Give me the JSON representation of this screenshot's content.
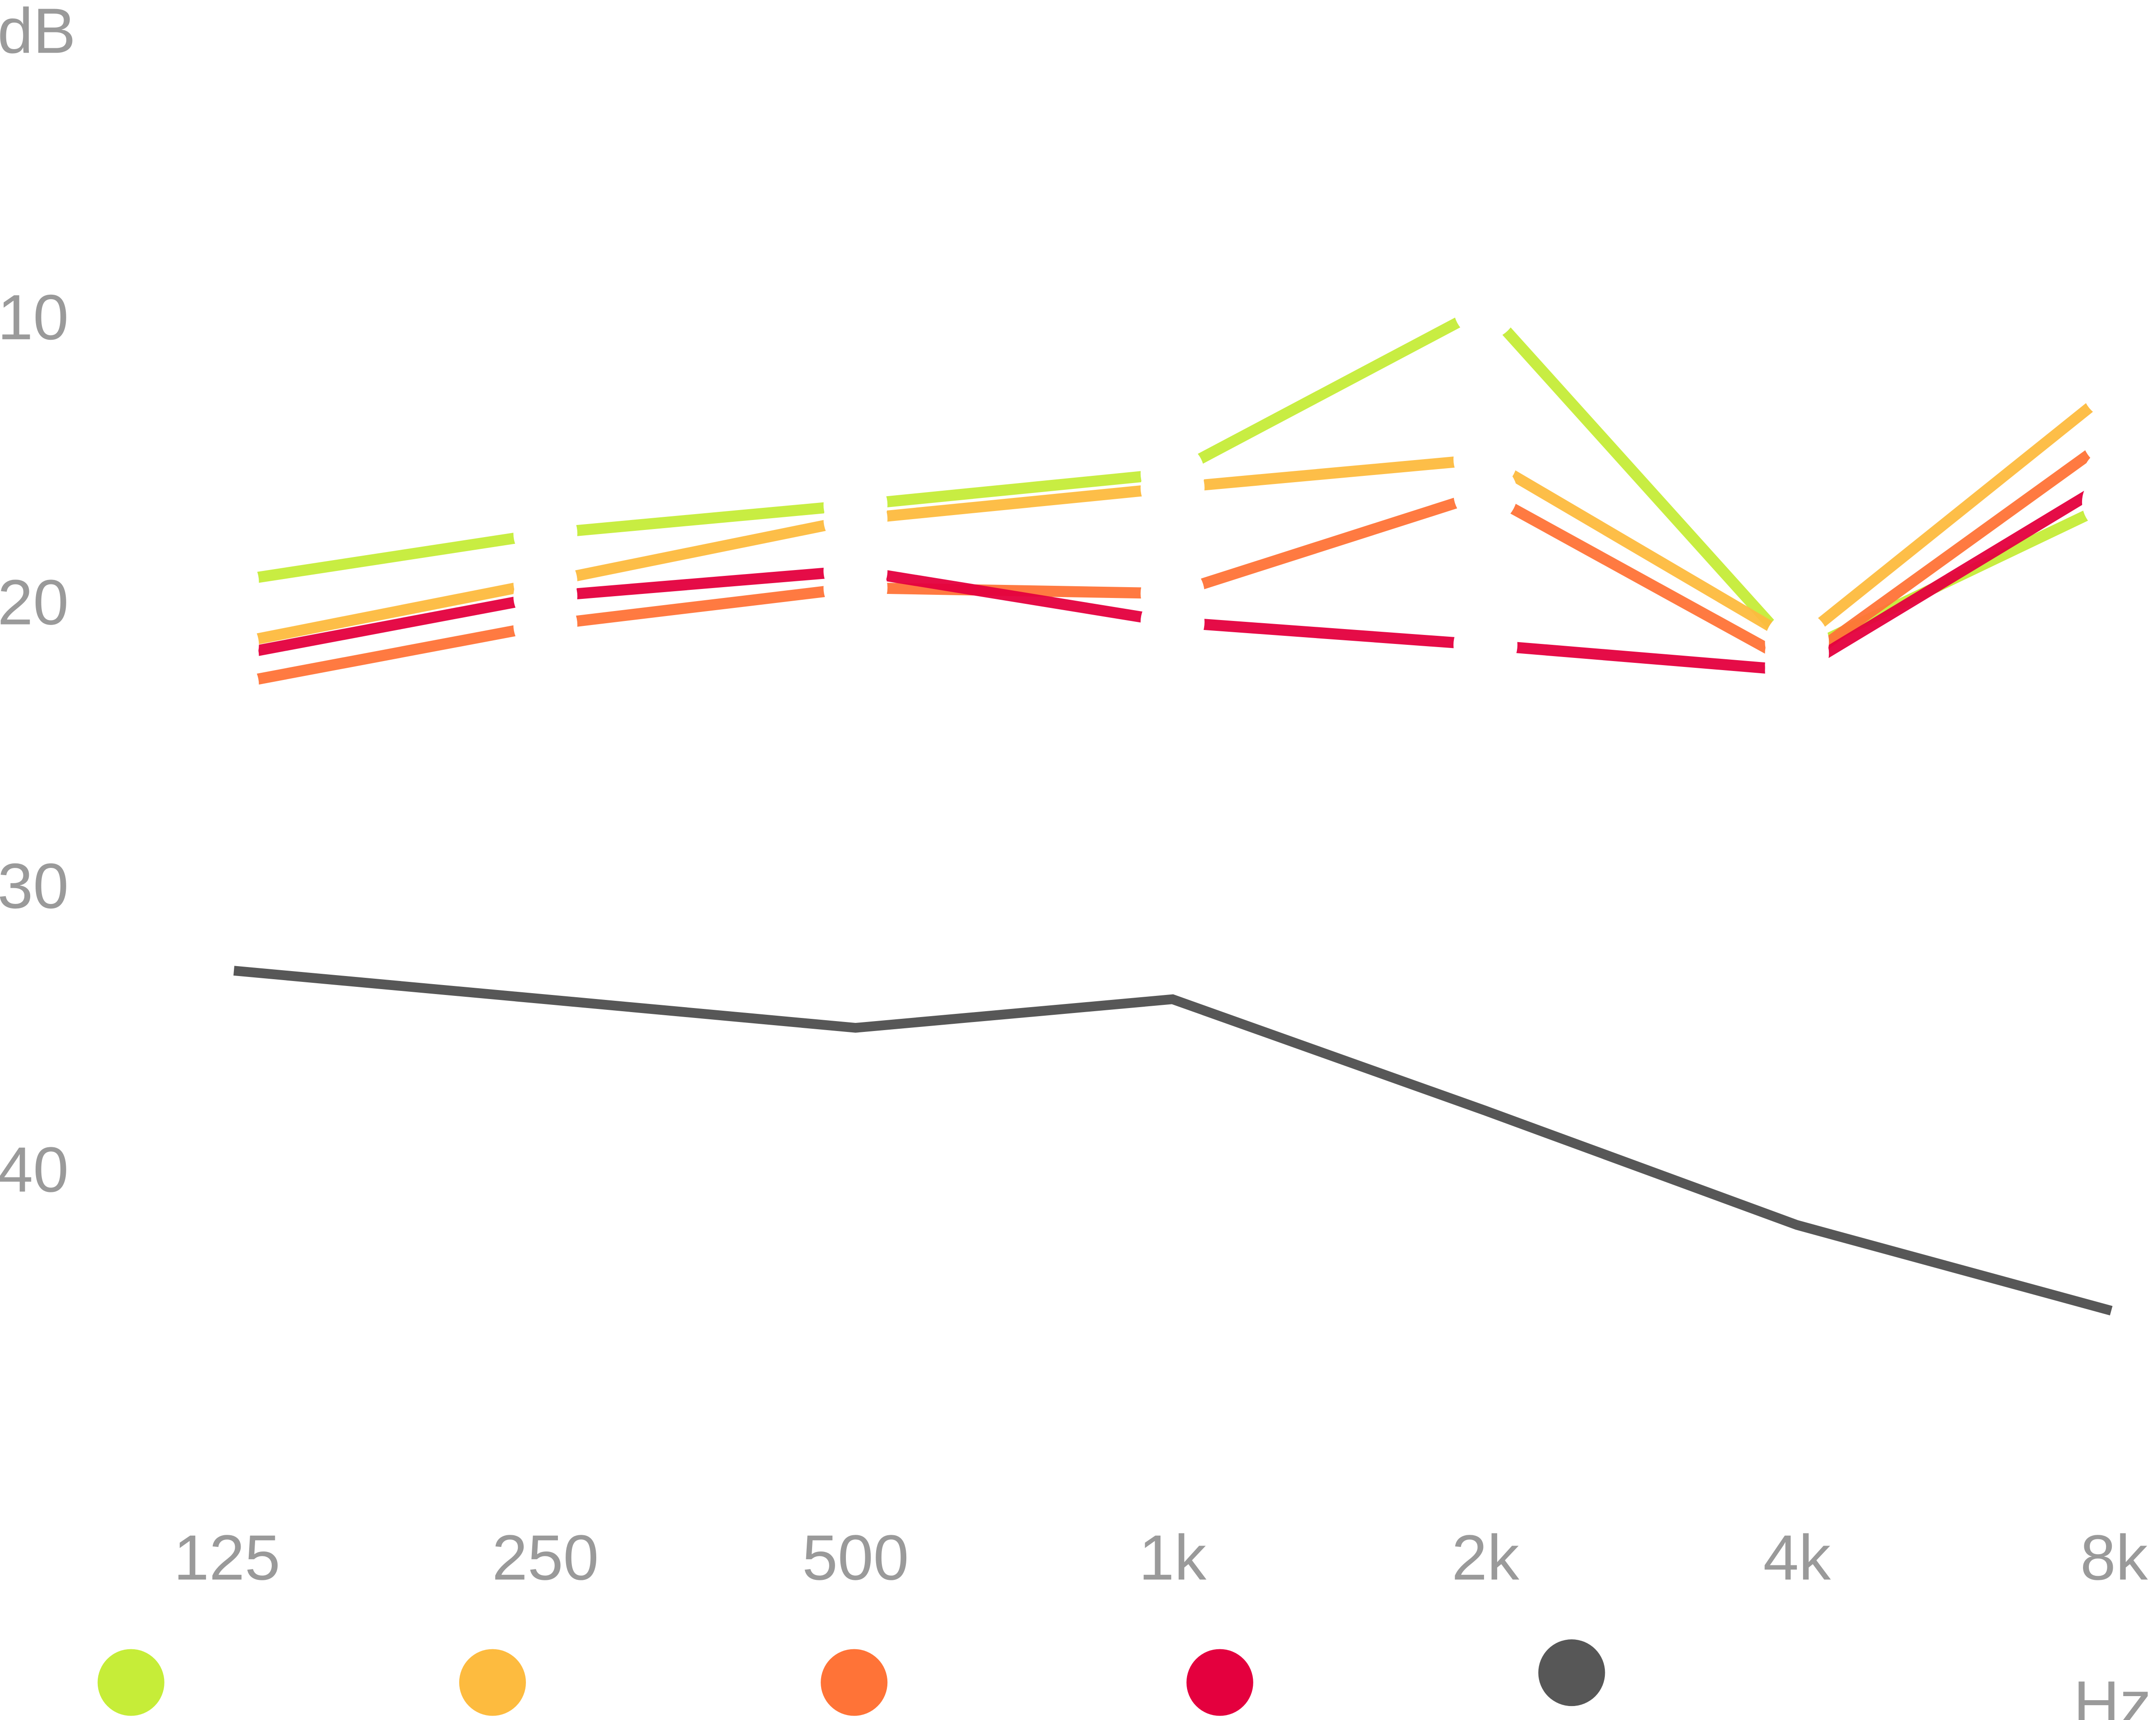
{
  "chart_data": {
    "type": "line",
    "ylabel": "dB",
    "xlabel": "Hz",
    "categories": [
      "125",
      "250",
      "500",
      "1k",
      "2k",
      "4k",
      "8k"
    ],
    "yticks": [
      "10",
      "20",
      "30",
      "40"
    ],
    "ylim": [
      0,
      50
    ],
    "y_inverted": true,
    "grid": "horizontal lines at 0 and 10 only, fading",
    "legend": "bottom, color dots without labels",
    "series": [
      {
        "color": "#c6ed38",
        "values": [
          19.3,
          17.6,
          16.6,
          15.5,
          9.7,
          21.8,
          16.5
        ]
      },
      {
        "color": "#fdbb3f",
        "values": [
          21.5,
          19.3,
          17.1,
          16.0,
          15.0,
          21.4,
          12.5
        ]
      },
      {
        "color": "#ff7337",
        "values": [
          22.9,
          20.8,
          19.5,
          19.7,
          16.2,
          22.2,
          14.2
        ]
      },
      {
        "color": "#e4003e",
        "values": [
          21.9,
          19.8,
          18.9,
          20.7,
          21.5,
          22.4,
          15.7
        ]
      },
      {
        "color": "#575757",
        "values": [
          32.9,
          33.9,
          34.9,
          33.9,
          37.8,
          41.8,
          44.8
        ],
        "continuous": true
      }
    ]
  }
}
